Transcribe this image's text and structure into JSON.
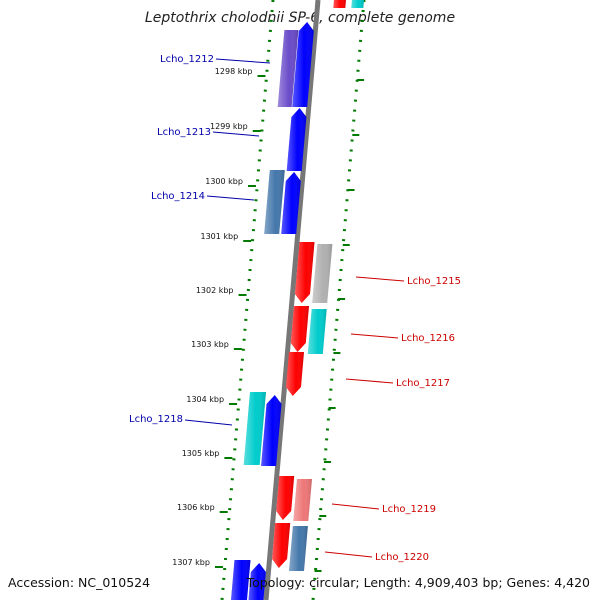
{
  "title": "Leptothrix cholodnii SP-6, complete genome",
  "footer": {
    "accession": "Accession: NC_010524",
    "info": "Topology: circular; Length: 4,909,403 bp; Genes: 4,420"
  },
  "colors": {
    "forward_gene": "#0000ff",
    "reverse_gene": "#ff0000",
    "gene_label_forward": "#0000aa",
    "gene_label_reverse": "#cc0000",
    "dotted_guides": "#007a00",
    "backbone": "#777777",
    "teal_feature": "#00cccc",
    "steel_feature": "#4477aa",
    "purple_feature": "#6a4cc9",
    "gray_feature": "#b0b0b0",
    "pink_feature": "#ee7777"
  },
  "ticks": [
    "1298 kbp",
    "1299 kbp",
    "1300 kbp",
    "1301 kbp",
    "1302 kbp",
    "1303 kbp",
    "1304 kbp",
    "1305 kbp",
    "1306 kbp",
    "1307 kbp"
  ],
  "genes": [
    {
      "name": "Lcho_1212",
      "strand": "forward"
    },
    {
      "name": "Lcho_1213",
      "strand": "forward"
    },
    {
      "name": "Lcho_1214",
      "strand": "forward"
    },
    {
      "name": "Lcho_1215",
      "strand": "reverse"
    },
    {
      "name": "Lcho_1216",
      "strand": "reverse"
    },
    {
      "name": "Lcho_1217",
      "strand": "reverse"
    },
    {
      "name": "Lcho_1218",
      "strand": "forward"
    },
    {
      "name": "Lcho_1219",
      "strand": "reverse"
    },
    {
      "name": "Lcho_1220",
      "strand": "reverse"
    }
  ]
}
